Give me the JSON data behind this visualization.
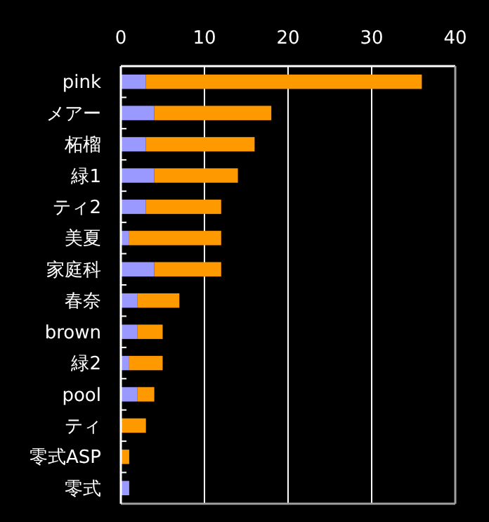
{
  "chart_data": {
    "type": "bar",
    "orientation": "horizontal",
    "stacked": true,
    "categories": [
      "pink",
      "メアー",
      "柘榴",
      "緑1",
      "ティ2",
      "美夏",
      "家庭科",
      "春奈",
      "brown",
      "緑2",
      "pool",
      "ティ",
      "零式ASP",
      "零式"
    ],
    "series": [
      {
        "color": "#9999ff",
        "values": [
          3,
          4,
          3,
          4,
          3,
          1,
          4,
          2,
          2,
          1,
          2,
          0,
          0,
          1
        ]
      },
      {
        "color": "#ff9900",
        "values": [
          33,
          14,
          13,
          10,
          9,
          11,
          8,
          5,
          3,
          4,
          2,
          3,
          1,
          0
        ]
      }
    ],
    "xlim": [
      0,
      40
    ],
    "xticks": [
      0,
      10,
      20,
      30,
      40
    ],
    "grid": "x"
  }
}
